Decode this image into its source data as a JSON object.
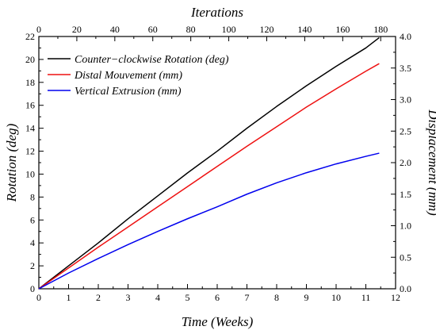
{
  "chart_data": {
    "type": "line",
    "top_axis": {
      "label": "Iterations",
      "ticks": [
        0,
        20,
        40,
        60,
        80,
        100,
        120,
        140,
        160,
        180
      ],
      "weeks_at_0": 0,
      "weeks_at_180": 11.5
    },
    "xlabel": "Time (Weeks)",
    "xlim": [
      0,
      12
    ],
    "x_ticks": [
      0,
      1,
      2,
      3,
      4,
      5,
      6,
      7,
      8,
      9,
      10,
      11,
      12
    ],
    "ylabel_left": "Rotation (deg)",
    "ylim_left": [
      0,
      22
    ],
    "y_ticks_left": [
      0,
      2,
      4,
      6,
      8,
      10,
      12,
      14,
      16,
      18,
      20,
      22
    ],
    "ylabel_right": "Displacement (mm)",
    "ylim_right": [
      0,
      4.0
    ],
    "y_ticks_right": [
      "0.0",
      "0.5",
      "1.0",
      "1.5",
      "2.0",
      "2.5",
      "3.0",
      "3.5",
      "4.0"
    ],
    "legend_position": "top-left",
    "series": [
      {
        "name": "Counter−clockwise Rotation (deg)",
        "axis": "left",
        "color": "#000000",
        "x": [
          0,
          1,
          2,
          3,
          4,
          5,
          6,
          7,
          8,
          9,
          10,
          11,
          11.45
        ],
        "y": [
          0,
          2.0,
          4.0,
          6.1,
          8.1,
          10.1,
          12.0,
          14.0,
          15.9,
          17.7,
          19.4,
          21.0,
          21.9
        ]
      },
      {
        "name": "Distal Mouvement (mm)",
        "axis": "right",
        "color": "#ee1111",
        "x": [
          0,
          1,
          2,
          3,
          4,
          5,
          6,
          7,
          8,
          9,
          10,
          11,
          11.45
        ],
        "y": [
          0,
          0.33,
          0.66,
          0.98,
          1.3,
          1.62,
          1.94,
          2.26,
          2.57,
          2.88,
          3.17,
          3.45,
          3.57
        ]
      },
      {
        "name": "Vertical Extrusion (mm)",
        "axis": "right",
        "color": "#0000ee",
        "x": [
          0,
          1,
          2,
          3,
          4,
          5,
          6,
          7,
          8,
          9,
          10,
          11,
          11.45
        ],
        "y": [
          0,
          0.25,
          0.48,
          0.7,
          0.91,
          1.11,
          1.3,
          1.5,
          1.68,
          1.84,
          1.98,
          2.1,
          2.15
        ]
      }
    ]
  }
}
